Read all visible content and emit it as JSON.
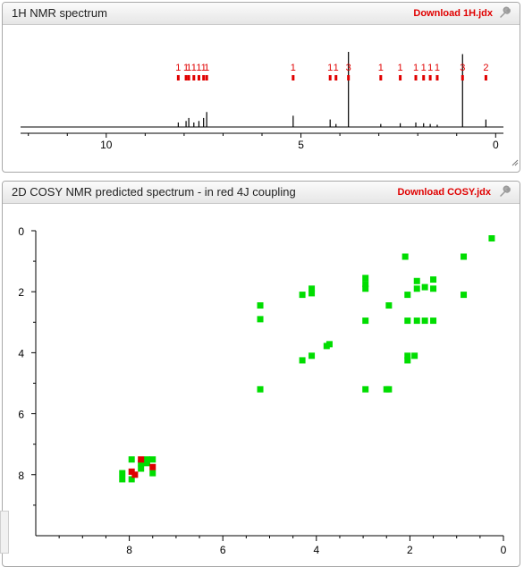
{
  "panel1": {
    "title": "1H NMR spectrum",
    "download_label": "Download 1H.jdx",
    "wrench_icon": "wrench-icon",
    "resize_icon": "resize-grip-icon"
  },
  "panel2": {
    "title": "2D COSY NMR predicted spectrum - in red 4J coupling",
    "download_label": "Download COSY.jdx",
    "wrench_icon": "wrench-icon"
  },
  "colors": {
    "peak_label": "#e00000",
    "cosy_3j": "#00dd00",
    "cosy_4j": "#dd0000",
    "axis": "#000000"
  },
  "chart_data": [
    {
      "type": "line",
      "xlim": [
        12.2,
        -0.2
      ],
      "x_ticks": [
        "10",
        "5",
        "0"
      ],
      "x_tick_values": [
        10,
        5,
        0
      ],
      "peaks": [
        {
          "ppm": 8.15,
          "height": 0.06,
          "label": "1"
        },
        {
          "ppm": 7.95,
          "height": 0.08,
          "label": "1"
        },
        {
          "ppm": 7.88,
          "height": 0.12,
          "label": "1"
        },
        {
          "ppm": 7.75,
          "height": 0.06,
          "label": "1"
        },
        {
          "ppm": 7.62,
          "height": 0.08,
          "label": "1"
        },
        {
          "ppm": 7.5,
          "height": 0.12,
          "label": "1"
        },
        {
          "ppm": 7.42,
          "height": 0.2,
          "label": "1"
        },
        {
          "ppm": 5.2,
          "height": 0.15,
          "label": "1"
        },
        {
          "ppm": 4.25,
          "height": 0.1,
          "label": "1"
        },
        {
          "ppm": 4.1,
          "height": 0.04,
          "label": "1"
        },
        {
          "ppm": 3.78,
          "height": 1.0,
          "label": "3"
        },
        {
          "ppm": 2.95,
          "height": 0.04,
          "label": "1"
        },
        {
          "ppm": 2.45,
          "height": 0.05,
          "label": "1"
        },
        {
          "ppm": 2.05,
          "height": 0.06,
          "label": "1"
        },
        {
          "ppm": 1.85,
          "height": 0.05,
          "label": "1"
        },
        {
          "ppm": 1.68,
          "height": 0.04,
          "label": "1"
        },
        {
          "ppm": 1.5,
          "height": 0.03,
          "label": "1"
        },
        {
          "ppm": 0.85,
          "height": 0.97,
          "label": "3"
        },
        {
          "ppm": 0.25,
          "height": 0.1,
          "label": "2"
        }
      ]
    },
    {
      "type": "scatter",
      "xlim": [
        10,
        0
      ],
      "ylim": [
        0,
        10
      ],
      "x_ticks": [
        "8",
        "6",
        "4",
        "2",
        "0"
      ],
      "x_tick_values": [
        8,
        6,
        4,
        2,
        0
      ],
      "y_ticks": [
        "0",
        "2",
        "4",
        "6",
        "8"
      ],
      "y_tick_values": [
        0,
        2,
        4,
        6,
        8
      ],
      "series": [
        {
          "color": "#00dd00",
          "points": [
            [
              0.25,
              0.25
            ],
            [
              0.85,
              0.85
            ],
            [
              0.85,
              2.1
            ],
            [
              2.1,
              0.85
            ],
            [
              2.95,
              1.55
            ],
            [
              2.95,
              1.75
            ],
            [
              2.95,
              1.9
            ],
            [
              2.95,
              2.95
            ],
            [
              2.95,
              5.2
            ],
            [
              1.85,
              1.65
            ],
            [
              1.85,
              1.9
            ],
            [
              1.85,
              2.95
            ],
            [
              1.68,
              1.85
            ],
            [
              1.68,
              2.95
            ],
            [
              1.5,
              1.6
            ],
            [
              1.5,
              1.9
            ],
            [
              1.5,
              2.95
            ],
            [
              2.05,
              2.1
            ],
            [
              2.05,
              2.95
            ],
            [
              2.05,
              4.25
            ],
            [
              2.05,
              4.1
            ],
            [
              1.9,
              4.1
            ],
            [
              2.45,
              2.45
            ],
            [
              2.5,
              5.2
            ],
            [
              2.45,
              5.2
            ],
            [
              4.1,
              1.9
            ],
            [
              4.1,
              2.05
            ],
            [
              4.3,
              2.1
            ],
            [
              4.3,
              4.25
            ],
            [
              4.1,
              4.1
            ],
            [
              3.78,
              3.78
            ],
            [
              3.72,
              3.72
            ],
            [
              5.2,
              5.2
            ],
            [
              5.2,
              2.45
            ],
            [
              5.2,
              2.9
            ],
            [
              8.15,
              7.95
            ],
            [
              8.15,
              8.15
            ],
            [
              7.95,
              7.5
            ],
            [
              7.95,
              8.15
            ],
            [
              7.75,
              7.8
            ],
            [
              7.62,
              7.5
            ],
            [
              7.62,
              7.62
            ],
            [
              7.5,
              7.5
            ],
            [
              7.5,
              7.95
            ],
            [
              7.75,
              7.62
            ]
          ]
        },
        {
          "color": "#dd0000",
          "points": [
            [
              7.95,
              7.9
            ],
            [
              7.88,
              8.0
            ],
            [
              7.75,
              7.5
            ],
            [
              7.5,
              7.75
            ]
          ]
        }
      ]
    }
  ]
}
